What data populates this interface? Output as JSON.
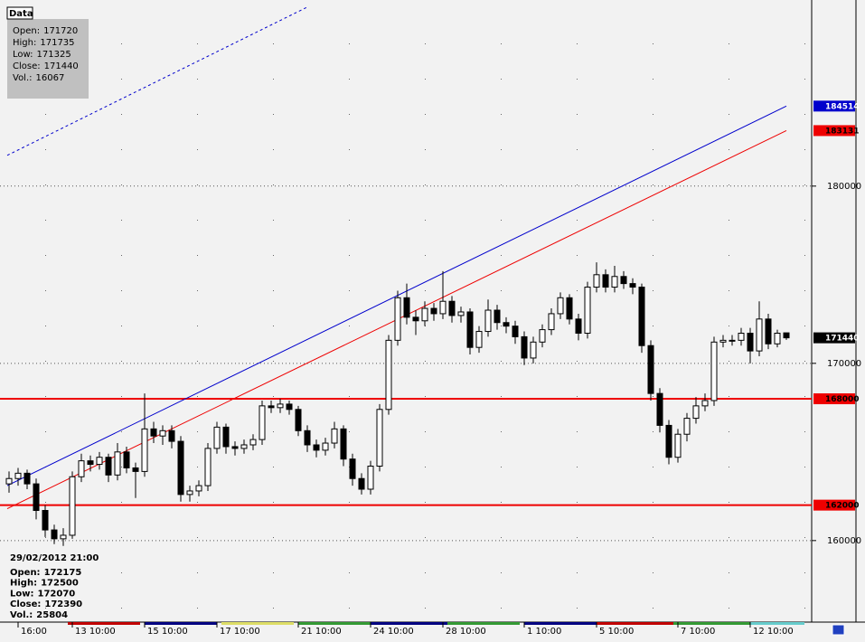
{
  "chart_data": {
    "type": "candlestick",
    "categories": [
      null,
      "16:00",
      null,
      null,
      null,
      null,
      null,
      "13 10:00",
      null,
      null,
      null,
      null,
      null,
      null,
      null,
      "15 10:00",
      null,
      null,
      null,
      null,
      null,
      null,
      null,
      "17 10:00",
      null,
      null,
      null,
      null,
      null,
      null,
      null,
      null,
      "21 10:00",
      null,
      null,
      null,
      null,
      null,
      null,
      null,
      "24 10:00",
      null,
      null,
      null,
      null,
      null,
      null,
      null,
      "28 10:00",
      null,
      null,
      null,
      null,
      null,
      null,
      null,
      null,
      "1 10:00",
      null,
      null,
      null,
      null,
      null,
      null,
      null,
      "5 10:00",
      null,
      null,
      null,
      null,
      null,
      null,
      null,
      null,
      "7 10:00",
      null,
      null,
      null,
      null,
      null,
      null,
      null,
      "12 10:00",
      null,
      null,
      null,
      null
    ],
    "open": [
      163200,
      163500,
      163800,
      163200,
      161700,
      160600,
      160100,
      160300,
      163600,
      164500,
      164300,
      164700,
      163700,
      165000,
      164100,
      163900,
      166300,
      165900,
      166200,
      165600,
      162600,
      162800,
      163100,
      165200,
      166400,
      165300,
      165200,
      165400,
      165700,
      167600,
      167500,
      167700,
      167400,
      166200,
      165400,
      165100,
      165500,
      166300,
      164600,
      163500,
      162900,
      164200,
      167400,
      171300,
      173700,
      172600,
      172400,
      173100,
      172800,
      173500,
      172700,
      172900,
      170900,
      171800,
      173000,
      172300,
      172100,
      171500,
      170300,
      171200,
      171900,
      172800,
      173700,
      172500,
      171700,
      174300,
      175000,
      174300,
      174900,
      174500,
      174300,
      171000,
      168300,
      166500,
      164700,
      166000,
      166900,
      167600,
      167900,
      171200,
      171300,
      171300,
      171700,
      170700,
      172500,
      171100,
      171720
    ],
    "high": [
      163900,
      164100,
      164000,
      163500,
      162000,
      160900,
      160700,
      163900,
      164900,
      164800,
      165000,
      164900,
      165500,
      165300,
      164400,
      168300,
      166700,
      166500,
      166500,
      165900,
      163100,
      163400,
      165500,
      166700,
      166600,
      165600,
      165700,
      166000,
      167900,
      167900,
      168000,
      167900,
      167600,
      166500,
      165700,
      165800,
      166700,
      166500,
      164900,
      163800,
      164500,
      167700,
      171600,
      174100,
      174500,
      173000,
      173500,
      173400,
      175200,
      173800,
      173200,
      173100,
      172100,
      173600,
      173300,
      172600,
      172400,
      171800,
      171500,
      172200,
      173100,
      174000,
      173900,
      172800,
      174600,
      175700,
      175300,
      175500,
      175200,
      174800,
      174500,
      171300,
      168600,
      166800,
      166300,
      167200,
      168100,
      168300,
      171500,
      171600,
      171600,
      172000,
      172000,
      173500,
      172800,
      171900,
      171735
    ],
    "low": [
      162700,
      163100,
      162900,
      161200,
      160200,
      159800,
      159700,
      160100,
      163300,
      163900,
      164000,
      163300,
      163400,
      163800,
      162400,
      163600,
      165500,
      165400,
      165200,
      162200,
      162200,
      162500,
      162800,
      164900,
      164900,
      164800,
      164900,
      165100,
      165400,
      167200,
      167200,
      167100,
      165900,
      165000,
      164700,
      164800,
      165200,
      164200,
      163100,
      162600,
      162600,
      163900,
      167100,
      171000,
      172200,
      171600,
      172100,
      172400,
      172500,
      172300,
      172300,
      170500,
      170600,
      171500,
      171900,
      171700,
      171100,
      169900,
      170000,
      170900,
      171600,
      172500,
      172200,
      171300,
      171400,
      174000,
      174000,
      174000,
      174200,
      173900,
      170600,
      167900,
      166100,
      164300,
      164400,
      165600,
      166600,
      167300,
      167600,
      170900,
      171000,
      171000,
      170000,
      170400,
      170800,
      170900,
      171325
    ],
    "close": [
      163500,
      163800,
      163200,
      161700,
      160600,
      160100,
      160300,
      163600,
      164500,
      164300,
      164700,
      163700,
      165000,
      164100,
      163900,
      166300,
      165900,
      166200,
      165600,
      162600,
      162800,
      163100,
      165200,
      166400,
      165300,
      165200,
      165400,
      165700,
      167600,
      167500,
      167700,
      167400,
      166200,
      165400,
      165100,
      165500,
      166300,
      164600,
      163500,
      162900,
      164200,
      167400,
      171300,
      173700,
      172600,
      172400,
      173100,
      172800,
      173500,
      172700,
      172900,
      170900,
      171800,
      173000,
      172300,
      172100,
      171500,
      170300,
      171200,
      171900,
      172800,
      173700,
      172500,
      171700,
      174300,
      175000,
      174300,
      174900,
      174500,
      174300,
      171000,
      168300,
      166500,
      164700,
      166000,
      166900,
      167600,
      167900,
      171200,
      171300,
      171300,
      171700,
      170700,
      172500,
      171100,
      171700,
      171440
    ],
    "ylim": [
      155400,
      190500
    ],
    "yticks": [
      160000,
      170000,
      180000
    ],
    "grid": true,
    "color": "#000000",
    "hlines": [
      {
        "value": 168000,
        "color": "#ee0000"
      },
      {
        "value": 162000,
        "color": "#ee0000"
      }
    ],
    "trendlines": [
      {
        "x": [
          0,
          86
        ],
        "values": [
          163100,
          184514
        ],
        "color": "#0000cc",
        "dashed": false
      },
      {
        "x": [
          0,
          86
        ],
        "values": [
          161800,
          183131
        ],
        "color": "#ee0000",
        "dashed": false
      },
      {
        "x": [
          0,
          33
        ],
        "values": [
          181735,
          190100
        ],
        "color": "#0000cc",
        "dashed": true
      }
    ],
    "data_box": {
      "title": "Data",
      "rows": [
        {
          "label": "Open:",
          "value": 171720
        },
        {
          "label": "High:",
          "value": 171735
        },
        {
          "label": "Low:",
          "value": 171325
        },
        {
          "label": "Close:",
          "value": 171440
        },
        {
          "label": "Vol.:",
          "value": 16067
        }
      ]
    },
    "cursor_box": {
      "time": "29/02/2012 21:00",
      "rows": [
        {
          "label": "Open:",
          "value": 172175
        },
        {
          "label": "High:",
          "value": 172500
        },
        {
          "label": "Low:",
          "value": 172070
        },
        {
          "label": "Close:",
          "value": 172390
        },
        {
          "label": "Vol.:",
          "value": 25804
        }
      ]
    }
  }
}
